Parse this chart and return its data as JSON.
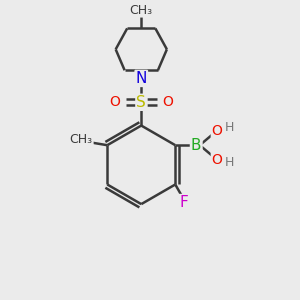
{
  "bg_color": "#ebebeb",
  "bond_color": "#3a3a3a",
  "bond_width": 1.8,
  "atom_colors": {
    "B": "#22aa22",
    "O": "#ee1100",
    "N": "#1100dd",
    "S": "#bbbb00",
    "F": "#cc00cc",
    "C": "#3a3a3a",
    "H": "#777777"
  },
  "font_size": 10
}
